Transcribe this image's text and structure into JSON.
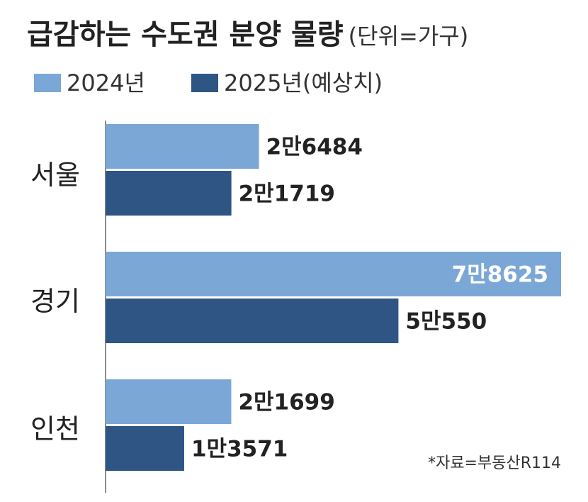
{
  "chart_data": {
    "type": "bar",
    "orientation": "horizontal",
    "title": "급감하는 수도권 분양 물량",
    "unit": "(단위=가구)",
    "categories": [
      "서울",
      "경기",
      "인천"
    ],
    "series": [
      {
        "name": "2024년",
        "values": [
          26484,
          78625,
          21699
        ],
        "labels": [
          "2만6484",
          "7만8625",
          "2만1699"
        ]
      },
      {
        "name": "2025년(예상치)",
        "values": [
          21719,
          50550,
          13571
        ],
        "labels": [
          "2만1719",
          "5만550",
          "1만3571"
        ]
      }
    ],
    "xlim": [
      0,
      78625
    ],
    "legend": "top-left",
    "grid": false,
    "source": "*자료=부동산R114"
  },
  "colors": {
    "series_2024": "#7ba7d6",
    "series_2025": "#2f5584",
    "axis": "#666666",
    "text": "#222222"
  }
}
